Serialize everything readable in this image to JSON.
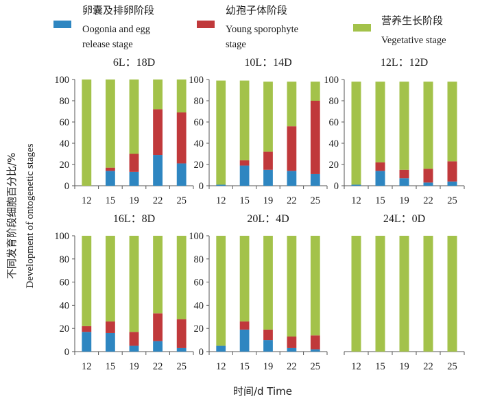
{
  "legend": {
    "items": [
      {
        "zh": "卵囊及排卵阶段",
        "en1": "Oogonia and egg",
        "en2": "release stage",
        "color": "#2e86c1"
      },
      {
        "zh": "幼孢子体阶段",
        "en1": "Young sporophyte",
        "en2": "stage",
        "color": "#c0393b"
      },
      {
        "zh": "营养生长阶段",
        "en1": "Vegetative stage",
        "en2": "",
        "color": "#a3c24a"
      }
    ]
  },
  "axis": {
    "y_label_zh": "不同发育阶段细胞百分比/%",
    "y_label_en": "Development of ontogenetic stages",
    "x_label": "时间/d Time"
  },
  "chart_data": [
    {
      "type": "bar",
      "stacked": true,
      "title": "6L：18D",
      "categories": [
        "12",
        "15",
        "19",
        "22",
        "25"
      ],
      "ylim": [
        0,
        100
      ],
      "yticks": [
        0,
        20,
        40,
        60,
        80,
        100
      ],
      "series": [
        {
          "name": "Oogonia and egg release stage",
          "values": [
            0,
            14,
            13,
            29,
            21
          ]
        },
        {
          "name": "Young sporophyte stage",
          "values": [
            0,
            3,
            17,
            43,
            48
          ]
        },
        {
          "name": "Vegetative stage",
          "values": [
            100,
            83,
            70,
            28,
            31
          ]
        }
      ]
    },
    {
      "type": "bar",
      "stacked": true,
      "title": "10L：14D",
      "categories": [
        "12",
        "15",
        "19",
        "22",
        "25"
      ],
      "ylim": [
        0,
        100
      ],
      "yticks": [
        0,
        20,
        40,
        60,
        80,
        100
      ],
      "series": [
        {
          "name": "Oogonia and egg release stage",
          "values": [
            1,
            19,
            15,
            14,
            11
          ]
        },
        {
          "name": "Young sporophyte stage",
          "values": [
            0,
            5,
            17,
            42,
            69
          ]
        },
        {
          "name": "Vegetative stage",
          "values": [
            98,
            75,
            66,
            42,
            18
          ]
        }
      ]
    },
    {
      "type": "bar",
      "stacked": true,
      "title": "12L：12D",
      "categories": [
        "12",
        "15",
        "19",
        "22",
        "25"
      ],
      "ylim": [
        0,
        100
      ],
      "yticks": [
        0,
        20,
        40,
        60,
        80,
        100
      ],
      "series": [
        {
          "name": "Oogonia and egg release stage",
          "values": [
            1,
            14,
            7,
            3,
            4
          ]
        },
        {
          "name": "Young sporophyte stage",
          "values": [
            0,
            8,
            8,
            13,
            19
          ]
        },
        {
          "name": "Vegetative stage",
          "values": [
            97,
            76,
            83,
            82,
            75
          ]
        }
      ]
    },
    {
      "type": "bar",
      "stacked": true,
      "title": "16L：8D",
      "categories": [
        "12",
        "15",
        "19",
        "22",
        "25"
      ],
      "ylim": [
        0,
        100
      ],
      "yticks": [
        0,
        20,
        40,
        60,
        80,
        100
      ],
      "series": [
        {
          "name": "Oogonia and egg release stage",
          "values": [
            17,
            16,
            5,
            9,
            3
          ]
        },
        {
          "name": "Young sporophyte stage",
          "values": [
            5,
            10,
            12,
            24,
            25
          ]
        },
        {
          "name": "Vegetative stage",
          "values": [
            78,
            74,
            83,
            67,
            72
          ]
        }
      ]
    },
    {
      "type": "bar",
      "stacked": true,
      "title": "20L：4D",
      "categories": [
        "12",
        "15",
        "19",
        "22",
        "25"
      ],
      "ylim": [
        0,
        100
      ],
      "yticks": [
        0,
        20,
        40,
        60,
        80,
        100
      ],
      "series": [
        {
          "name": "Oogonia and egg release stage",
          "values": [
            5,
            19,
            10,
            3,
            2
          ]
        },
        {
          "name": "Young sporophyte stage",
          "values": [
            0,
            7,
            9,
            10,
            12
          ]
        },
        {
          "name": "Vegetative stage",
          "values": [
            95,
            74,
            81,
            87,
            86
          ]
        }
      ]
    },
    {
      "type": "bar",
      "stacked": true,
      "title": "24L：0D",
      "categories": [
        "12",
        "15",
        "19",
        "22",
        "25"
      ],
      "ylim": [
        0,
        100
      ],
      "yticks": [],
      "series": [
        {
          "name": "Oogonia and egg release stage",
          "values": [
            0,
            0,
            0,
            0,
            0
          ]
        },
        {
          "name": "Young sporophyte stage",
          "values": [
            0,
            0,
            0,
            0,
            0
          ]
        },
        {
          "name": "Vegetative stage",
          "values": [
            100,
            100,
            100,
            100,
            100
          ]
        }
      ]
    }
  ]
}
